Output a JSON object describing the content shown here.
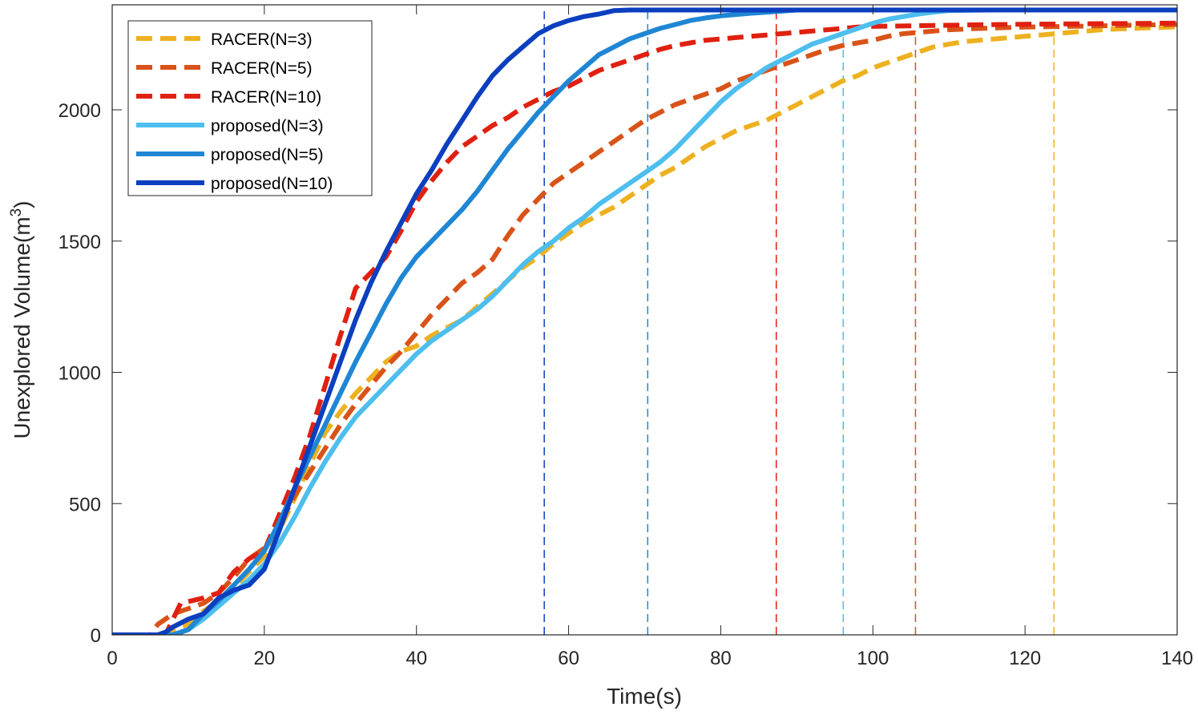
{
  "chart_data": {
    "type": "line",
    "title": "",
    "xlabel": "Time(s)",
    "ylabel_base": "Unexplored Volume(m",
    "ylabel_sup": "3",
    "ylabel_close": ")",
    "xlim": [
      0,
      140
    ],
    "ylim": [
      0,
      2400
    ],
    "xticks": [
      0,
      20,
      40,
      60,
      80,
      100,
      120,
      140
    ],
    "yticks": [
      0,
      500,
      1000,
      1500,
      2000
    ],
    "grid": false,
    "legend_position": "top-left",
    "series": [
      {
        "name": "RACER(N=3)",
        "color": "#EDB120",
        "dash": "dashed",
        "finish_time": 123.8,
        "points": [
          [
            0,
            0
          ],
          [
            6,
            0
          ],
          [
            8,
            20
          ],
          [
            10,
            40
          ],
          [
            12,
            90
          ],
          [
            14,
            130
          ],
          [
            16,
            180
          ],
          [
            18,
            240
          ],
          [
            20,
            300
          ],
          [
            22,
            400
          ],
          [
            24,
            520
          ],
          [
            26,
            650
          ],
          [
            28,
            770
          ],
          [
            30,
            850
          ],
          [
            32,
            920
          ],
          [
            34,
            980
          ],
          [
            36,
            1040
          ],
          [
            38,
            1080
          ],
          [
            40,
            1100
          ],
          [
            42,
            1140
          ],
          [
            44,
            1170
          ],
          [
            46,
            1200
          ],
          [
            48,
            1250
          ],
          [
            50,
            1300
          ],
          [
            52,
            1350
          ],
          [
            54,
            1400
          ],
          [
            56,
            1440
          ],
          [
            58,
            1490
          ],
          [
            60,
            1530
          ],
          [
            62,
            1570
          ],
          [
            64,
            1600
          ],
          [
            66,
            1630
          ],
          [
            68,
            1670
          ],
          [
            70,
            1710
          ],
          [
            72,
            1750
          ],
          [
            74,
            1780
          ],
          [
            76,
            1820
          ],
          [
            78,
            1860
          ],
          [
            80,
            1890
          ],
          [
            82,
            1920
          ],
          [
            84,
            1940
          ],
          [
            86,
            1960
          ],
          [
            88,
            1990
          ],
          [
            90,
            2020
          ],
          [
            92,
            2050
          ],
          [
            94,
            2080
          ],
          [
            96,
            2110
          ],
          [
            98,
            2130
          ],
          [
            100,
            2160
          ],
          [
            102,
            2180
          ],
          [
            104,
            2200
          ],
          [
            106,
            2220
          ],
          [
            108,
            2240
          ],
          [
            110,
            2250
          ],
          [
            112,
            2260
          ],
          [
            114,
            2265
          ],
          [
            116,
            2270
          ],
          [
            118,
            2275
          ],
          [
            120,
            2280
          ],
          [
            122,
            2285
          ],
          [
            124,
            2290
          ],
          [
            126,
            2295
          ],
          [
            128,
            2300
          ],
          [
            130,
            2305
          ],
          [
            132,
            2308
          ],
          [
            134,
            2310
          ],
          [
            136,
            2312
          ],
          [
            138,
            2314
          ],
          [
            140,
            2316
          ]
        ]
      },
      {
        "name": "RACER(N=5)",
        "color": "#D95319",
        "dash": "dashed",
        "finish_time": 105.6,
        "points": [
          [
            0,
            0
          ],
          [
            5,
            0
          ],
          [
            6,
            40
          ],
          [
            8,
            80
          ],
          [
            10,
            100
          ],
          [
            12,
            120
          ],
          [
            14,
            160
          ],
          [
            16,
            220
          ],
          [
            18,
            290
          ],
          [
            20,
            330
          ],
          [
            22,
            420
          ],
          [
            24,
            530
          ],
          [
            26,
            620
          ],
          [
            28,
            710
          ],
          [
            30,
            800
          ],
          [
            32,
            880
          ],
          [
            34,
            950
          ],
          [
            36,
            1020
          ],
          [
            38,
            1080
          ],
          [
            40,
            1150
          ],
          [
            42,
            1220
          ],
          [
            44,
            1280
          ],
          [
            46,
            1340
          ],
          [
            48,
            1380
          ],
          [
            50,
            1430
          ],
          [
            52,
            1520
          ],
          [
            54,
            1600
          ],
          [
            56,
            1660
          ],
          [
            58,
            1720
          ],
          [
            60,
            1760
          ],
          [
            62,
            1800
          ],
          [
            64,
            1840
          ],
          [
            66,
            1880
          ],
          [
            68,
            1920
          ],
          [
            70,
            1960
          ],
          [
            72,
            1990
          ],
          [
            74,
            2020
          ],
          [
            76,
            2040
          ],
          [
            78,
            2060
          ],
          [
            80,
            2080
          ],
          [
            82,
            2110
          ],
          [
            84,
            2130
          ],
          [
            86,
            2150
          ],
          [
            88,
            2170
          ],
          [
            90,
            2190
          ],
          [
            92,
            2210
          ],
          [
            94,
            2230
          ],
          [
            96,
            2245
          ],
          [
            98,
            2255
          ],
          [
            100,
            2265
          ],
          [
            102,
            2280
          ],
          [
            104,
            2290
          ],
          [
            106,
            2295
          ],
          [
            108,
            2300
          ],
          [
            110,
            2305
          ],
          [
            114,
            2310
          ],
          [
            120,
            2315
          ],
          [
            130,
            2320
          ],
          [
            140,
            2325
          ]
        ]
      },
      {
        "name": "RACER(N=10)",
        "color": "#E02010",
        "dash": "dashed",
        "finish_time": 87.3,
        "points": [
          [
            0,
            0
          ],
          [
            7,
            0
          ],
          [
            8,
            60
          ],
          [
            9,
            120
          ],
          [
            12,
            140
          ],
          [
            14,
            160
          ],
          [
            16,
            240
          ],
          [
            18,
            290
          ],
          [
            20,
            320
          ],
          [
            22,
            460
          ],
          [
            24,
            600
          ],
          [
            26,
            760
          ],
          [
            28,
            950
          ],
          [
            30,
            1140
          ],
          [
            32,
            1320
          ],
          [
            34,
            1380
          ],
          [
            36,
            1440
          ],
          [
            38,
            1540
          ],
          [
            40,
            1650
          ],
          [
            42,
            1730
          ],
          [
            44,
            1800
          ],
          [
            46,
            1860
          ],
          [
            48,
            1900
          ],
          [
            50,
            1940
          ],
          [
            52,
            1970
          ],
          [
            54,
            2010
          ],
          [
            56,
            2040
          ],
          [
            58,
            2070
          ],
          [
            60,
            2090
          ],
          [
            62,
            2120
          ],
          [
            64,
            2150
          ],
          [
            66,
            2170
          ],
          [
            68,
            2190
          ],
          [
            70,
            2210
          ],
          [
            72,
            2230
          ],
          [
            74,
            2245
          ],
          [
            76,
            2255
          ],
          [
            78,
            2265
          ],
          [
            80,
            2270
          ],
          [
            82,
            2275
          ],
          [
            84,
            2280
          ],
          [
            86,
            2285
          ],
          [
            88,
            2290
          ],
          [
            90,
            2295
          ],
          [
            92,
            2300
          ],
          [
            94,
            2305
          ],
          [
            96,
            2310
          ],
          [
            98,
            2315
          ],
          [
            100,
            2318
          ],
          [
            110,
            2322
          ],
          [
            120,
            2326
          ],
          [
            140,
            2330
          ]
        ]
      },
      {
        "name": "proposed(N=3)",
        "color": "#4DBEEE",
        "dash": "solid",
        "finish_time": 96.1,
        "points": [
          [
            0,
            0
          ],
          [
            8,
            0
          ],
          [
            10,
            20
          ],
          [
            12,
            60
          ],
          [
            14,
            110
          ],
          [
            16,
            160
          ],
          [
            18,
            210
          ],
          [
            20,
            270
          ],
          [
            22,
            350
          ],
          [
            24,
            450
          ],
          [
            26,
            560
          ],
          [
            28,
            660
          ],
          [
            30,
            750
          ],
          [
            32,
            830
          ],
          [
            34,
            890
          ],
          [
            36,
            950
          ],
          [
            38,
            1010
          ],
          [
            40,
            1070
          ],
          [
            42,
            1120
          ],
          [
            44,
            1160
          ],
          [
            46,
            1200
          ],
          [
            48,
            1240
          ],
          [
            50,
            1290
          ],
          [
            52,
            1350
          ],
          [
            54,
            1410
          ],
          [
            56,
            1460
          ],
          [
            58,
            1500
          ],
          [
            60,
            1550
          ],
          [
            62,
            1590
          ],
          [
            64,
            1640
          ],
          [
            66,
            1680
          ],
          [
            68,
            1720
          ],
          [
            70,
            1760
          ],
          [
            72,
            1800
          ],
          [
            74,
            1850
          ],
          [
            76,
            1910
          ],
          [
            78,
            1970
          ],
          [
            80,
            2030
          ],
          [
            82,
            2080
          ],
          [
            84,
            2120
          ],
          [
            86,
            2160
          ],
          [
            88,
            2190
          ],
          [
            90,
            2220
          ],
          [
            92,
            2250
          ],
          [
            94,
            2270
          ],
          [
            96,
            2290
          ],
          [
            98,
            2310
          ],
          [
            100,
            2330
          ],
          [
            102,
            2345
          ],
          [
            104,
            2355
          ],
          [
            106,
            2365
          ],
          [
            108,
            2372
          ],
          [
            110,
            2378
          ],
          [
            115,
            2380
          ],
          [
            140,
            2380
          ]
        ]
      },
      {
        "name": "proposed(N=5)",
        "color": "#1F86D4",
        "dash": "solid",
        "finish_time": 70.4,
        "points": [
          [
            0,
            0
          ],
          [
            8,
            0
          ],
          [
            10,
            20
          ],
          [
            12,
            80
          ],
          [
            14,
            130
          ],
          [
            16,
            190
          ],
          [
            18,
            250
          ],
          [
            20,
            320
          ],
          [
            22,
            430
          ],
          [
            24,
            560
          ],
          [
            26,
            680
          ],
          [
            28,
            800
          ],
          [
            30,
            920
          ],
          [
            32,
            1040
          ],
          [
            34,
            1150
          ],
          [
            36,
            1260
          ],
          [
            38,
            1360
          ],
          [
            40,
            1440
          ],
          [
            42,
            1500
          ],
          [
            44,
            1560
          ],
          [
            46,
            1620
          ],
          [
            48,
            1690
          ],
          [
            50,
            1770
          ],
          [
            52,
            1850
          ],
          [
            54,
            1920
          ],
          [
            56,
            1990
          ],
          [
            58,
            2050
          ],
          [
            60,
            2110
          ],
          [
            62,
            2160
          ],
          [
            64,
            2210
          ],
          [
            66,
            2240
          ],
          [
            68,
            2270
          ],
          [
            70,
            2290
          ],
          [
            72,
            2310
          ],
          [
            74,
            2325
          ],
          [
            76,
            2340
          ],
          [
            78,
            2350
          ],
          [
            80,
            2358
          ],
          [
            82,
            2363
          ],
          [
            84,
            2368
          ],
          [
            86,
            2372
          ],
          [
            88,
            2376
          ],
          [
            90,
            2380
          ],
          [
            140,
            2380
          ]
        ]
      },
      {
        "name": "proposed(N=10)",
        "color": "#0B3FBF",
        "dash": "solid",
        "finish_time": 56.8,
        "points": [
          [
            0,
            0
          ],
          [
            6,
            0
          ],
          [
            7,
            10
          ],
          [
            8,
            30
          ],
          [
            10,
            60
          ],
          [
            12,
            80
          ],
          [
            14,
            140
          ],
          [
            16,
            170
          ],
          [
            18,
            190
          ],
          [
            20,
            250
          ],
          [
            22,
            400
          ],
          [
            24,
            560
          ],
          [
            26,
            720
          ],
          [
            28,
            880
          ],
          [
            30,
            1040
          ],
          [
            32,
            1200
          ],
          [
            34,
            1340
          ],
          [
            36,
            1460
          ],
          [
            38,
            1570
          ],
          [
            40,
            1680
          ],
          [
            42,
            1770
          ],
          [
            44,
            1870
          ],
          [
            46,
            1960
          ],
          [
            48,
            2050
          ],
          [
            50,
            2130
          ],
          [
            52,
            2190
          ],
          [
            54,
            2240
          ],
          [
            56,
            2290
          ],
          [
            58,
            2320
          ],
          [
            60,
            2340
          ],
          [
            62,
            2355
          ],
          [
            64,
            2365
          ],
          [
            66,
            2378
          ],
          [
            68,
            2380
          ],
          [
            140,
            2380
          ]
        ]
      }
    ]
  }
}
